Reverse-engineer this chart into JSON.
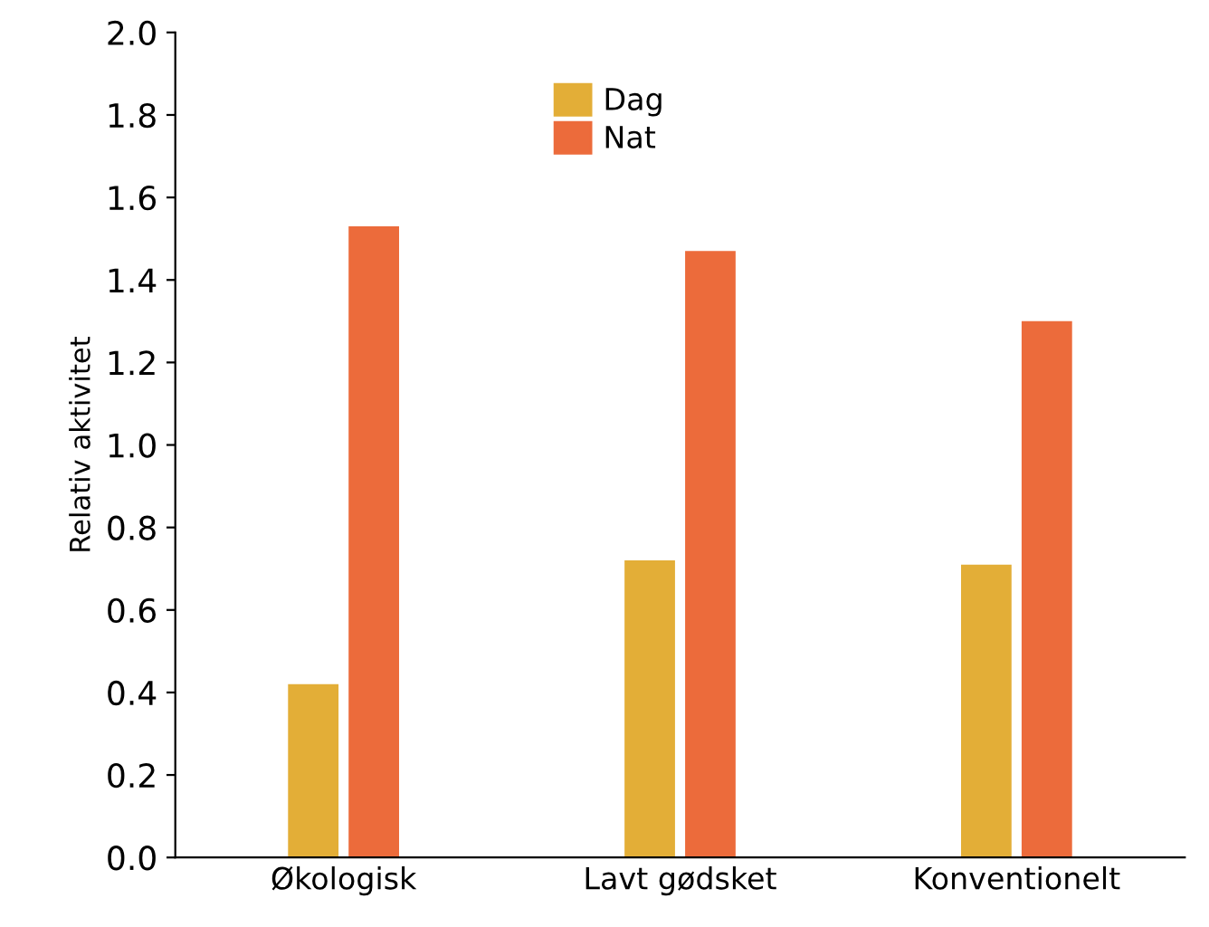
{
  "chart_data": {
    "type": "bar",
    "ylabel": "Relativ aktivitet",
    "categories": [
      "Økologisk",
      "Lavt gødsket",
      "Konventionelt"
    ],
    "series": [
      {
        "name": "Dag",
        "color": "#e3ae37",
        "values": [
          0.42,
          0.72,
          0.71
        ]
      },
      {
        "name": "Nat",
        "color": "#ec6b3b",
        "values": [
          1.53,
          1.47,
          1.3
        ]
      }
    ],
    "ylim": [
      0,
      2.0
    ],
    "yticks": [
      {
        "value": 0,
        "label": "0.0"
      },
      0.2,
      0.4,
      0.6,
      0.8,
      {
        "value": 1,
        "label": "1.0"
      },
      1.2,
      1.4,
      1.6,
      1.8,
      {
        "value": 2,
        "label": "2.0"
      }
    ],
    "grid": false,
    "legend": "top"
  }
}
